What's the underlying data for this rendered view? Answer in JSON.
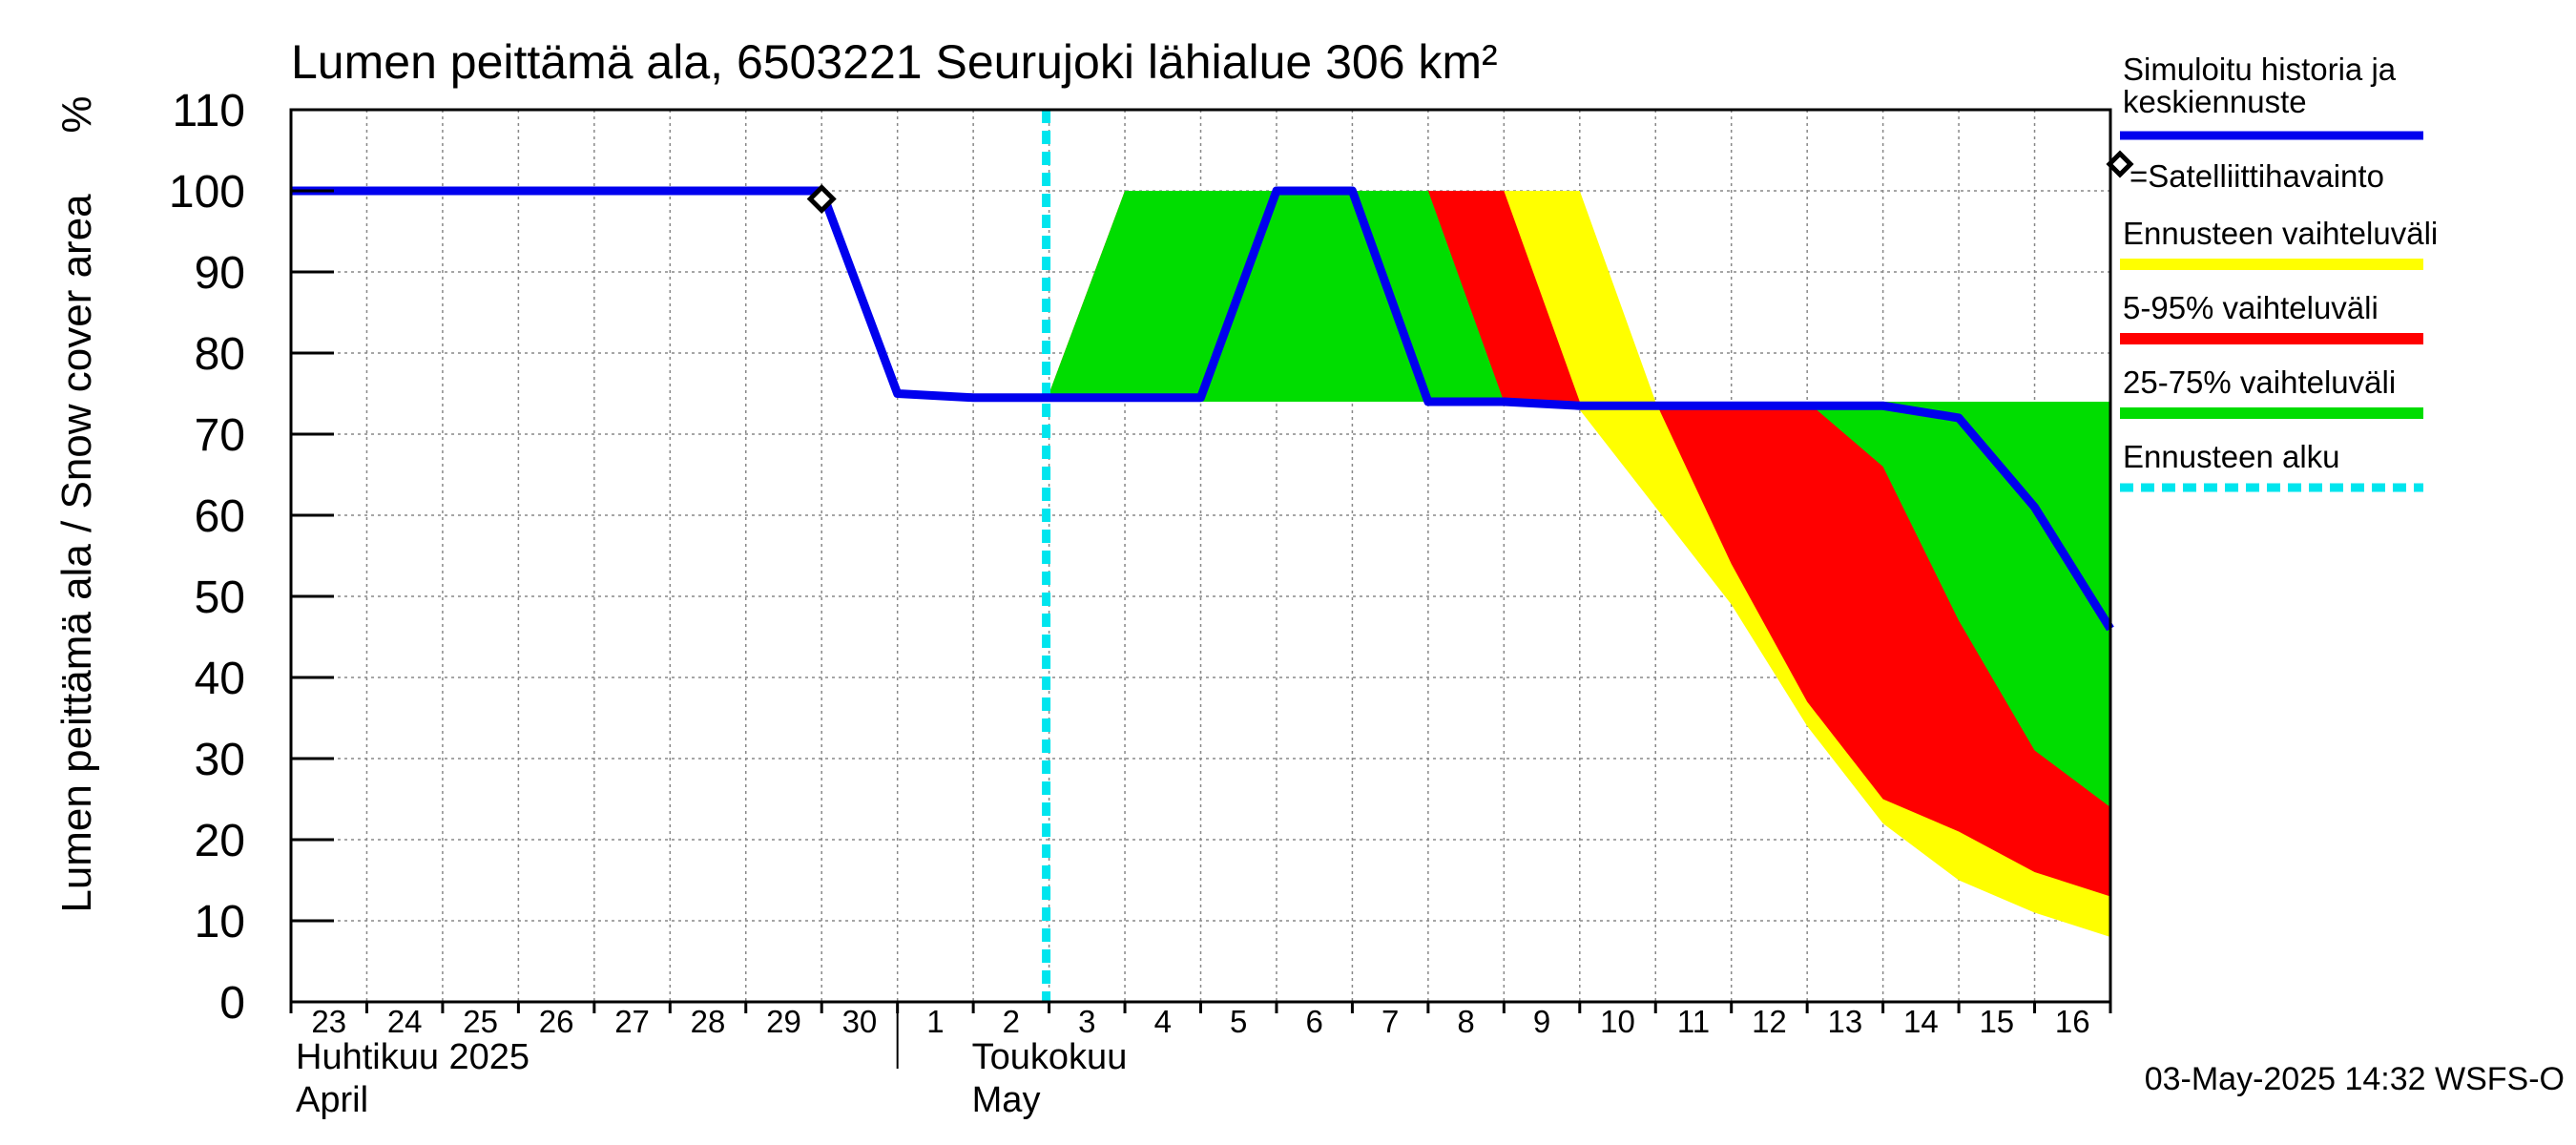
{
  "chart_data": {
    "type": "area",
    "title": "Lumen peittämä ala, 6503221 Seurujoki lähialue 306 km²",
    "ylabel": "Lumen peittämä ala / Snow cover area",
    "yunit": "%",
    "ylim": [
      0,
      110
    ],
    "yticks": [
      0,
      10,
      20,
      30,
      40,
      50,
      60,
      70,
      80,
      90,
      100,
      110
    ],
    "xlim": [
      "2025-04-23",
      "2025-05-16T24:00"
    ],
    "x_tick_labels": [
      "23",
      "24",
      "25",
      "26",
      "27",
      "28",
      "29",
      "30",
      "1",
      "2",
      "3",
      "4",
      "5",
      "6",
      "7",
      "8",
      "9",
      "10",
      "11",
      "12",
      "13",
      "14",
      "15",
      "16"
    ],
    "month_labels": [
      {
        "fi": "Huhtikuu  2025",
        "en": "April"
      },
      {
        "fi": "Toukokuu",
        "en": "May"
      }
    ],
    "grid": true,
    "legend_position": "right",
    "timestamp": "03-May-2025 14:32 WSFS-O",
    "forecast_start": "2025-05-03",
    "series": [
      {
        "name": "Ennusteen vaihteluväli",
        "color": "#ffff00",
        "x": [
          "2025-05-03",
          "2025-05-04",
          "2025-05-05",
          "2025-05-06",
          "2025-05-07",
          "2025-05-08",
          "2025-05-09",
          "2025-05-10",
          "2025-05-11",
          "2025-05-12",
          "2025-05-13",
          "2025-05-14",
          "2025-05-15",
          "2025-05-16",
          "2025-05-17"
        ],
        "upper": [
          75,
          100,
          100,
          100,
          100,
          100,
          100,
          100,
          74,
          74,
          74,
          74,
          74,
          74,
          74
        ],
        "lower": [
          75,
          74,
          74,
          74,
          74,
          74,
          74,
          73,
          61,
          49,
          34,
          22,
          15,
          11,
          8
        ]
      },
      {
        "name": "5-95% vaihteluväli",
        "color": "#ff0000",
        "x": [
          "2025-05-03",
          "2025-05-04",
          "2025-05-05",
          "2025-05-06",
          "2025-05-07",
          "2025-05-08",
          "2025-05-09",
          "2025-05-10",
          "2025-05-11",
          "2025-05-12",
          "2025-05-13",
          "2025-05-14",
          "2025-05-15",
          "2025-05-16",
          "2025-05-17"
        ],
        "upper": [
          75,
          100,
          100,
          100,
          100,
          100,
          100,
          74,
          74,
          74,
          74,
          74,
          74,
          74,
          74
        ],
        "lower": [
          75,
          74,
          74,
          74,
          74,
          74,
          74,
          74,
          74,
          54,
          37,
          25,
          21,
          16,
          13
        ]
      },
      {
        "name": "25-75% vaihteluväli",
        "color": "#00dd00",
        "x": [
          "2025-05-03",
          "2025-05-04",
          "2025-05-05",
          "2025-05-06",
          "2025-05-07",
          "2025-05-08",
          "2025-05-09",
          "2025-05-10",
          "2025-05-11",
          "2025-05-12",
          "2025-05-13",
          "2025-05-14",
          "2025-05-15",
          "2025-05-16",
          "2025-05-17"
        ],
        "upper": [
          75,
          100,
          100,
          100,
          100,
          100,
          74,
          74,
          74,
          74,
          74,
          74,
          74,
          74,
          74
        ],
        "lower": [
          75,
          74,
          74,
          74,
          74,
          74,
          74,
          74,
          74,
          74,
          74,
          66,
          47,
          31,
          24
        ]
      },
      {
        "name": "Simuloitu historia ja keskiennuste",
        "color": "#0000ee",
        "x": [
          "2025-04-23",
          "2025-04-30",
          "2025-05-01",
          "2025-05-02",
          "2025-05-03",
          "2025-05-05",
          "2025-05-06",
          "2025-05-07",
          "2025-05-08",
          "2025-05-09",
          "2025-05-10",
          "2025-05-11",
          "2025-05-12",
          "2025-05-13",
          "2025-05-14",
          "2025-05-15",
          "2025-05-16",
          "2025-05-17"
        ],
        "y": [
          100,
          100,
          75,
          74.5,
          74.5,
          74.5,
          100,
          100,
          74,
          74,
          73.5,
          73.5,
          73.5,
          73.5,
          73.5,
          72,
          61,
          46
        ]
      }
    ],
    "observations": [
      {
        "name": "Satelliittihavainto",
        "x": "2025-04-30",
        "y": 99
      }
    ],
    "legend": {
      "sim_line1": "Simuloitu historia ja",
      "sim_line2": "keskiennuste",
      "sat": "=Satelliittihavainto",
      "range": "Ennusteen vaihteluväli",
      "p595": "5-95% vaihteluväli",
      "p2575": "25-75% vaihteluväli",
      "start": "Ennusteen alku"
    },
    "colors": {
      "sim": "#0000ee",
      "range": "#ffff00",
      "p595": "#ff0000",
      "p2575": "#00dd00",
      "start": "#00e5ee"
    }
  }
}
